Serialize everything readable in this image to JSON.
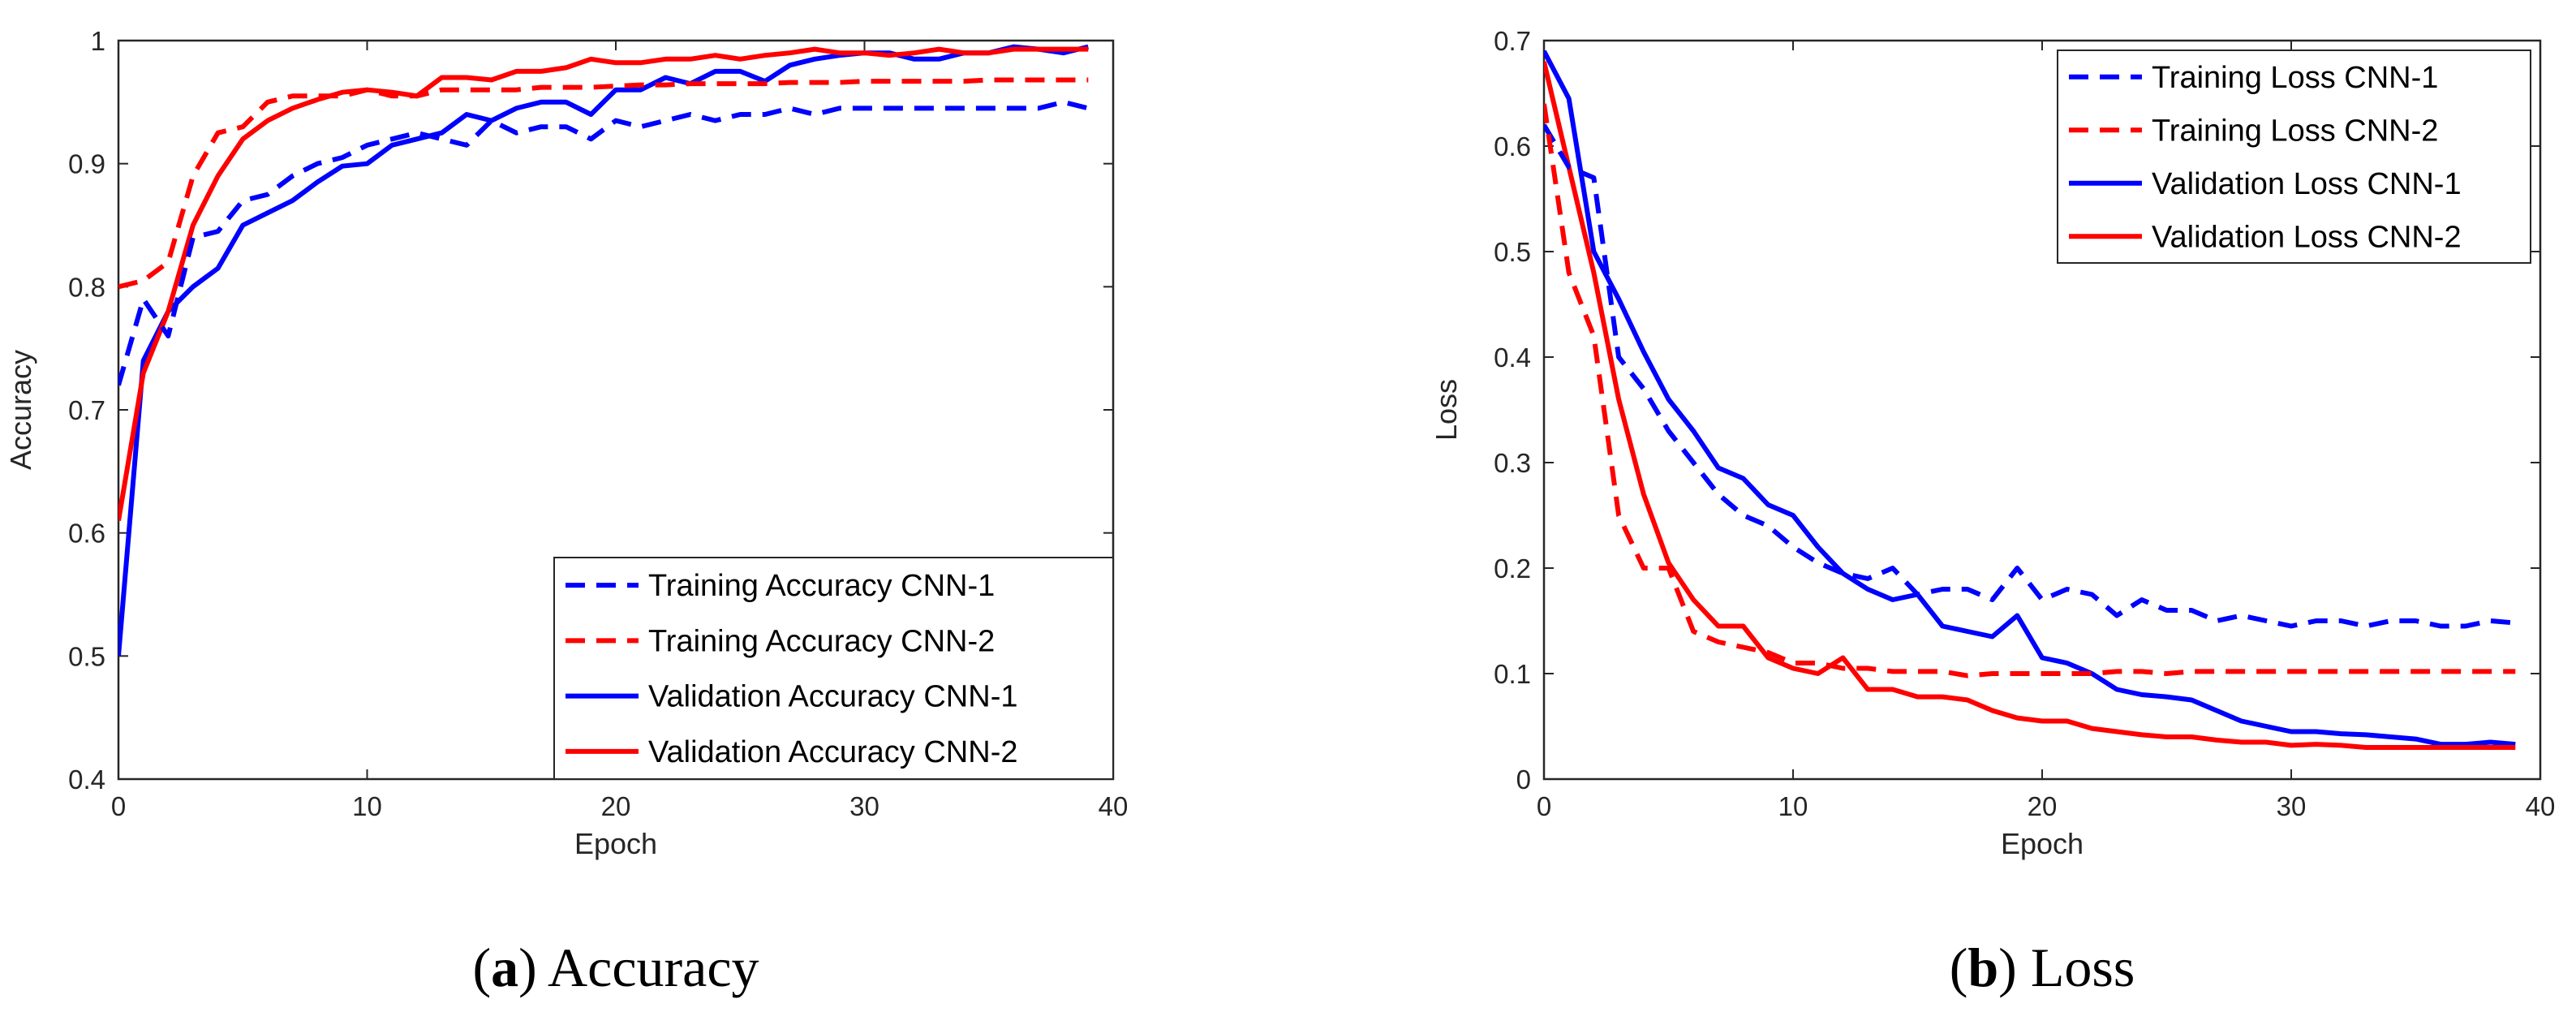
{
  "chart_data": [
    {
      "type": "line",
      "id": "acc",
      "xlabel": "Epoch",
      "ylabel": "Accuracy",
      "xlim": [
        0,
        40
      ],
      "ylim": [
        0.4,
        1
      ],
      "xticks": [
        0,
        10,
        20,
        30,
        40
      ],
      "yticks": [
        0.4,
        0.5,
        0.6,
        0.7,
        0.8,
        0.9,
        1
      ],
      "ytick_labels": [
        "0.4",
        "0.5",
        "0.6",
        "0.7",
        "0.8",
        "0.9",
        "1"
      ],
      "legend_position": "bottom-right",
      "caption": {
        "letter": "a",
        "text": "Accuracy"
      },
      "series": [
        {
          "name": "Training Accuracy CNN-1",
          "color": "#0000ff",
          "dashed": true,
          "x": [
            0,
            1,
            2,
            3,
            4,
            5,
            6,
            7,
            8,
            9,
            10,
            11,
            12,
            13,
            14,
            15,
            16,
            17,
            18,
            19,
            20,
            21,
            22,
            23,
            24,
            25,
            26,
            27,
            28,
            29,
            30,
            31,
            32,
            33,
            34,
            35,
            36,
            37,
            38,
            39
          ],
          "y": [
            0.72,
            0.79,
            0.76,
            0.84,
            0.845,
            0.87,
            0.875,
            0.89,
            0.9,
            0.905,
            0.915,
            0.92,
            0.925,
            0.92,
            0.915,
            0.935,
            0.925,
            0.93,
            0.93,
            0.92,
            0.935,
            0.93,
            0.935,
            0.94,
            0.935,
            0.94,
            0.94,
            0.945,
            0.94,
            0.945,
            0.945,
            0.945,
            0.945,
            0.945,
            0.945,
            0.945,
            0.945,
            0.945,
            0.95,
            0.945
          ]
        },
        {
          "name": "Training Accuracy CNN-2",
          "color": "#ff0000",
          "dashed": true,
          "x": [
            0,
            1,
            2,
            3,
            4,
            5,
            6,
            7,
            8,
            9,
            10,
            11,
            12,
            13,
            14,
            15,
            16,
            17,
            18,
            19,
            20,
            21,
            22,
            23,
            24,
            25,
            26,
            27,
            28,
            29,
            30,
            31,
            32,
            33,
            34,
            35,
            36,
            37,
            38,
            39
          ],
          "y": [
            0.8,
            0.805,
            0.82,
            0.89,
            0.925,
            0.93,
            0.95,
            0.955,
            0.955,
            0.955,
            0.96,
            0.955,
            0.955,
            0.96,
            0.96,
            0.96,
            0.96,
            0.962,
            0.962,
            0.962,
            0.963,
            0.964,
            0.964,
            0.965,
            0.965,
            0.965,
            0.965,
            0.966,
            0.966,
            0.966,
            0.967,
            0.967,
            0.967,
            0.967,
            0.967,
            0.968,
            0.968,
            0.968,
            0.968,
            0.968
          ]
        },
        {
          "name": "Validation Accuracy CNN-1",
          "color": "#0000ff",
          "dashed": false,
          "x": [
            0,
            1,
            2,
            3,
            4,
            5,
            6,
            7,
            8,
            9,
            10,
            11,
            12,
            13,
            14,
            15,
            16,
            17,
            18,
            19,
            20,
            21,
            22,
            23,
            24,
            25,
            26,
            27,
            28,
            29,
            30,
            31,
            32,
            33,
            34,
            35,
            36,
            37,
            38,
            39
          ],
          "y": [
            0.5,
            0.74,
            0.78,
            0.8,
            0.815,
            0.85,
            0.86,
            0.87,
            0.885,
            0.898,
            0.9,
            0.915,
            0.92,
            0.925,
            0.94,
            0.935,
            0.945,
            0.95,
            0.95,
            0.94,
            0.96,
            0.96,
            0.97,
            0.965,
            0.975,
            0.975,
            0.967,
            0.98,
            0.985,
            0.988,
            0.99,
            0.99,
            0.985,
            0.985,
            0.99,
            0.99,
            0.995,
            0.993,
            0.99,
            0.995
          ]
        },
        {
          "name": "Validation Accuracy CNN-2",
          "color": "#ff0000",
          "dashed": false,
          "x": [
            0,
            1,
            2,
            3,
            4,
            5,
            6,
            7,
            8,
            9,
            10,
            11,
            12,
            13,
            14,
            15,
            16,
            17,
            18,
            19,
            20,
            21,
            22,
            23,
            24,
            25,
            26,
            27,
            28,
            29,
            30,
            31,
            32,
            33,
            34,
            35,
            36,
            37,
            38,
            39
          ],
          "y": [
            0.61,
            0.73,
            0.78,
            0.85,
            0.89,
            0.92,
            0.935,
            0.945,
            0.952,
            0.958,
            0.96,
            0.958,
            0.955,
            0.97,
            0.97,
            0.968,
            0.975,
            0.975,
            0.978,
            0.985,
            0.982,
            0.982,
            0.985,
            0.985,
            0.988,
            0.985,
            0.988,
            0.99,
            0.993,
            0.99,
            0.99,
            0.988,
            0.99,
            0.993,
            0.99,
            0.99,
            0.993,
            0.993,
            0.993,
            0.993
          ]
        }
      ]
    },
    {
      "type": "line",
      "id": "loss",
      "xlabel": "Epoch",
      "ylabel": "Loss",
      "xlim": [
        0,
        40
      ],
      "ylim": [
        0,
        0.7
      ],
      "xticks": [
        0,
        10,
        20,
        30,
        40
      ],
      "yticks": [
        0,
        0.1,
        0.2,
        0.3,
        0.4,
        0.5,
        0.6,
        0.7
      ],
      "ytick_labels": [
        "0",
        "0.1",
        "0.2",
        "0.3",
        "0.4",
        "0.5",
        "0.6",
        "0.7"
      ],
      "legend_position": "top-right",
      "caption": {
        "letter": "b",
        "text": "Loss"
      },
      "series": [
        {
          "name": "Training Loss CNN-1",
          "color": "#0000ff",
          "dashed": true,
          "x": [
            0,
            1,
            2,
            3,
            4,
            5,
            6,
            7,
            8,
            9,
            10,
            11,
            12,
            13,
            14,
            15,
            16,
            17,
            18,
            19,
            20,
            21,
            22,
            23,
            24,
            25,
            26,
            27,
            28,
            29,
            30,
            31,
            32,
            33,
            34,
            35,
            36,
            37,
            38,
            39
          ],
          "y": [
            0.62,
            0.58,
            0.57,
            0.4,
            0.37,
            0.33,
            0.3,
            0.27,
            0.25,
            0.24,
            0.22,
            0.205,
            0.195,
            0.19,
            0.2,
            0.175,
            0.18,
            0.18,
            0.17,
            0.2,
            0.17,
            0.18,
            0.175,
            0.155,
            0.17,
            0.16,
            0.16,
            0.15,
            0.155,
            0.15,
            0.145,
            0.15,
            0.15,
            0.145,
            0.15,
            0.15,
            0.145,
            0.145,
            0.15,
            0.148
          ]
        },
        {
          "name": "Training Loss CNN-2",
          "color": "#ff0000",
          "dashed": true,
          "x": [
            0,
            1,
            2,
            3,
            4,
            5,
            6,
            7,
            8,
            9,
            10,
            11,
            12,
            13,
            14,
            15,
            16,
            17,
            18,
            19,
            20,
            21,
            22,
            23,
            24,
            25,
            26,
            27,
            28,
            29,
            30,
            31,
            32,
            33,
            34,
            35,
            36,
            37,
            38,
            39
          ],
          "y": [
            0.64,
            0.48,
            0.42,
            0.25,
            0.2,
            0.2,
            0.14,
            0.13,
            0.125,
            0.12,
            0.11,
            0.11,
            0.105,
            0.105,
            0.102,
            0.102,
            0.102,
            0.098,
            0.1,
            0.1,
            0.1,
            0.1,
            0.1,
            0.102,
            0.102,
            0.1,
            0.102,
            0.102,
            0.102,
            0.102,
            0.102,
            0.102,
            0.102,
            0.102,
            0.102,
            0.102,
            0.102,
            0.102,
            0.102,
            0.102
          ]
        },
        {
          "name": "Validation Loss CNN-1",
          "color": "#0000ff",
          "dashed": false,
          "x": [
            0,
            1,
            2,
            3,
            4,
            5,
            6,
            7,
            8,
            9,
            10,
            11,
            12,
            13,
            14,
            15,
            16,
            17,
            18,
            19,
            20,
            21,
            22,
            23,
            24,
            25,
            26,
            27,
            28,
            29,
            30,
            31,
            32,
            33,
            34,
            35,
            36,
            37,
            38,
            39
          ],
          "y": [
            0.69,
            0.645,
            0.5,
            0.455,
            0.405,
            0.36,
            0.33,
            0.295,
            0.285,
            0.26,
            0.25,
            0.22,
            0.195,
            0.18,
            0.17,
            0.175,
            0.145,
            0.14,
            0.135,
            0.155,
            0.115,
            0.11,
            0.1,
            0.085,
            0.08,
            0.078,
            0.075,
            0.065,
            0.055,
            0.05,
            0.045,
            0.045,
            0.043,
            0.042,
            0.04,
            0.038,
            0.033,
            0.033,
            0.035,
            0.033
          ]
        },
        {
          "name": "Validation Loss CNN-2",
          "color": "#ff0000",
          "dashed": false,
          "x": [
            0,
            1,
            2,
            3,
            4,
            5,
            6,
            7,
            8,
            9,
            10,
            11,
            12,
            13,
            14,
            15,
            16,
            17,
            18,
            19,
            20,
            21,
            22,
            23,
            24,
            25,
            26,
            27,
            28,
            29,
            30,
            31,
            32,
            33,
            34,
            35,
            36,
            37,
            38,
            39
          ],
          "y": [
            0.68,
            0.58,
            0.48,
            0.36,
            0.27,
            0.205,
            0.17,
            0.145,
            0.145,
            0.115,
            0.105,
            0.1,
            0.115,
            0.085,
            0.085,
            0.078,
            0.078,
            0.075,
            0.065,
            0.058,
            0.055,
            0.055,
            0.048,
            0.045,
            0.042,
            0.04,
            0.04,
            0.037,
            0.035,
            0.035,
            0.032,
            0.033,
            0.032,
            0.03,
            0.03,
            0.03,
            0.03,
            0.03,
            0.03,
            0.03
          ]
        }
      ]
    }
  ]
}
